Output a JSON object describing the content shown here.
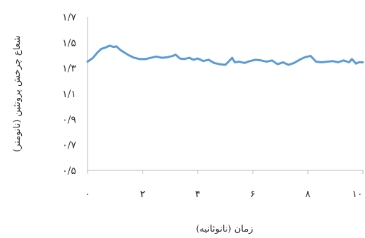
{
  "chart_data": {
    "type": "line",
    "title": "",
    "xlabel": "زمان (نانوثانیه)",
    "ylabel": "شعاع چرخش پروتئین (نانومتر)",
    "xlim": [
      0,
      10
    ],
    "ylim": [
      0.5,
      1.7
    ],
    "x_ticks": [
      0,
      2,
      4,
      6,
      8,
      10
    ],
    "x_tick_labels": [
      "۰",
      "۲",
      "۴",
      "۶",
      "۸",
      "۱۰"
    ],
    "y_ticks": [
      0.5,
      0.7,
      0.9,
      1.1,
      1.3,
      1.5,
      1.7
    ],
    "y_tick_labels": [
      "۰/۵",
      "۰/۷",
      "۰/۹",
      "۱/۱",
      "۱/۳",
      "۱/۵",
      "۱/۷"
    ],
    "grid": false,
    "legend": "none",
    "series": [
      {
        "color": "#5b9bd5",
        "x": [
          0,
          0.2,
          0.35,
          0.5,
          0.65,
          0.8,
          0.95,
          1.05,
          1.2,
          1.35,
          1.5,
          1.7,
          1.9,
          2.1,
          2.3,
          2.5,
          2.7,
          2.9,
          3.1,
          3.2,
          3.35,
          3.5,
          3.7,
          3.85,
          4.0,
          4.2,
          4.4,
          4.6,
          4.8,
          5.0,
          5.1,
          5.25,
          5.35,
          5.5,
          5.7,
          5.9,
          6.1,
          6.3,
          6.5,
          6.7,
          6.9,
          7.1,
          7.3,
          7.5,
          7.7,
          7.9,
          8.1,
          8.3,
          8.5,
          8.7,
          8.9,
          9.1,
          9.3,
          9.5,
          9.6,
          9.75,
          9.85,
          10.0
        ],
        "y": [
          1.35,
          1.38,
          1.42,
          1.45,
          1.46,
          1.475,
          1.465,
          1.47,
          1.44,
          1.42,
          1.4,
          1.38,
          1.37,
          1.37,
          1.38,
          1.39,
          1.38,
          1.385,
          1.395,
          1.405,
          1.375,
          1.37,
          1.38,
          1.365,
          1.375,
          1.355,
          1.365,
          1.34,
          1.33,
          1.325,
          1.345,
          1.38,
          1.345,
          1.35,
          1.34,
          1.355,
          1.365,
          1.36,
          1.35,
          1.36,
          1.33,
          1.345,
          1.325,
          1.34,
          1.365,
          1.385,
          1.395,
          1.35,
          1.345,
          1.35,
          1.355,
          1.345,
          1.36,
          1.345,
          1.37,
          1.335,
          1.345,
          1.345
        ]
      }
    ]
  }
}
